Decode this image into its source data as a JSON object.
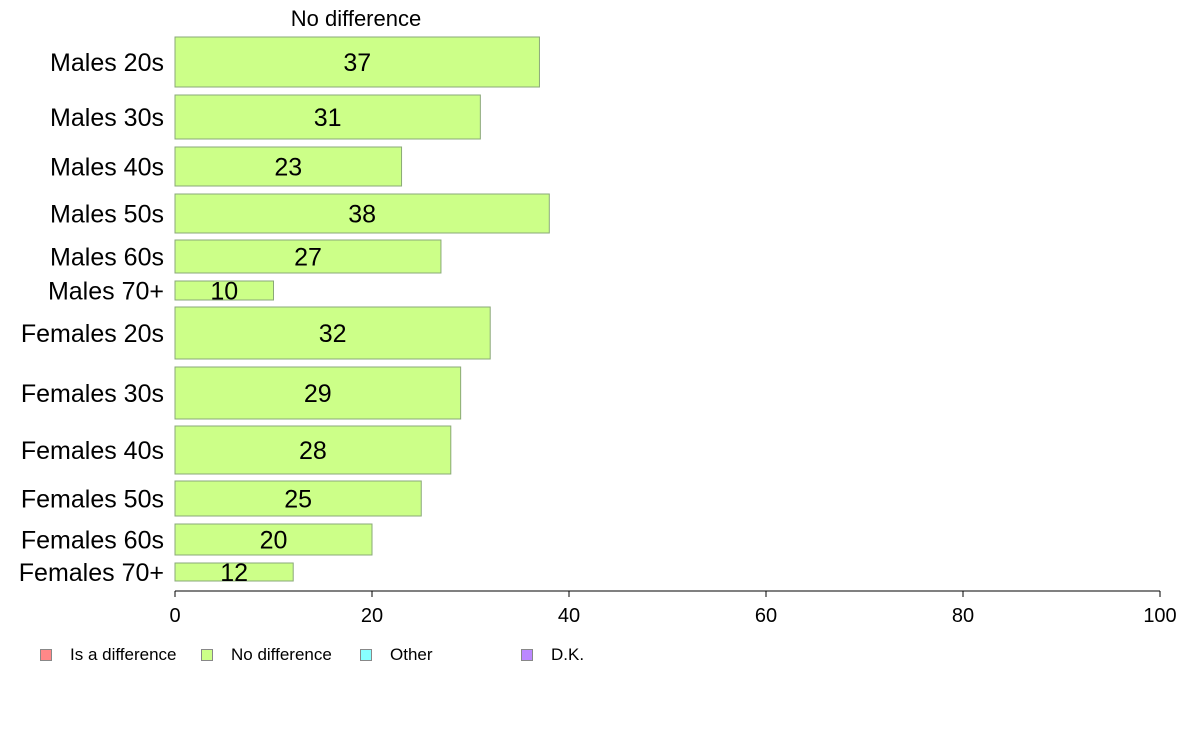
{
  "chart_data": {
    "type": "bar",
    "orientation": "horizontal",
    "title": "No difference",
    "categories": [
      "Males 20s",
      "Males 30s",
      "Males 40s",
      "Males 50s",
      "Males 60s",
      "Males 70+",
      "Females 20s",
      "Females 30s",
      "Females 40s",
      "Females 50s",
      "Females 60s",
      "Females 70+"
    ],
    "series": [
      {
        "name": "No difference",
        "color": "#ccff88",
        "values": [
          37,
          31,
          23,
          38,
          27,
          10,
          32,
          29,
          28,
          25,
          20,
          12
        ]
      }
    ],
    "xlim": [
      0,
      100
    ],
    "xticks": [
      "0",
      "20",
      "40",
      "60",
      "80",
      "100"
    ],
    "grid": false,
    "legend": {
      "position": "bottom-left",
      "items": [
        {
          "label": "Is a difference",
          "color": "#ff8888"
        },
        {
          "label": "No difference",
          "color": "#ccff88"
        },
        {
          "label": "Other",
          "color": "#88ffff"
        },
        {
          "label": "D.K.",
          "color": "#bb88ff"
        }
      ]
    }
  }
}
